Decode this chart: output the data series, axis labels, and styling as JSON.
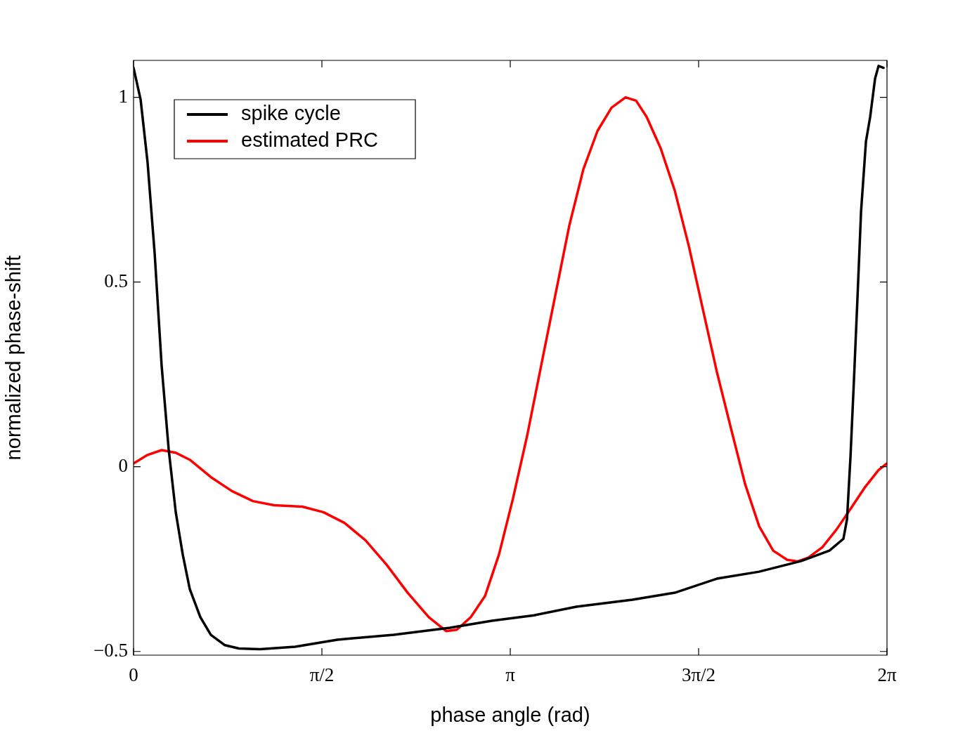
{
  "chart_data": {
    "type": "line",
    "xlabel": "phase angle (rad)",
    "ylabel": "normalized phase-shift",
    "xlim": [
      0,
      6.2832
    ],
    "ylim": [
      -0.51,
      1.1
    ],
    "xticks": [
      {
        "value": 0,
        "label": "0"
      },
      {
        "value": 1.5708,
        "label": "π/2"
      },
      {
        "value": 3.1416,
        "label": "π"
      },
      {
        "value": 4.7124,
        "label": "3π/2"
      },
      {
        "value": 6.2832,
        "label": "2π"
      }
    ],
    "yticks": [
      {
        "value": -0.5,
        "label": "−0.5"
      },
      0,
      0.5,
      1
    ],
    "grid": false,
    "legend": "top left",
    "marker": "none",
    "line_style": "solid",
    "series": [
      {
        "name": "spike cycle",
        "color": "#000000",
        "x": [
          0,
          0.059,
          0.117,
          0.176,
          0.234,
          0.293,
          0.352,
          0.41,
          0.469,
          0.557,
          0.645,
          0.762,
          0.879,
          1.055,
          1.348,
          1.7,
          2.169,
          2.638,
          2.989,
          3.341,
          3.693,
          4.162,
          4.514,
          4.865,
          5.217,
          5.569,
          5.803,
          5.92,
          5.95,
          5.979,
          6.008,
          6.038,
          6.067,
          6.108,
          6.143,
          6.184,
          6.213,
          6.254
        ],
        "values": [
          1.08,
          0.994,
          0.824,
          0.578,
          0.275,
          0.047,
          -0.123,
          -0.237,
          -0.331,
          -0.407,
          -0.455,
          -0.483,
          -0.492,
          -0.494,
          -0.487,
          -0.468,
          -0.455,
          -0.436,
          -0.417,
          -0.402,
          -0.379,
          -0.36,
          -0.341,
          -0.303,
          -0.284,
          -0.255,
          -0.227,
          -0.195,
          -0.142,
          0.028,
          0.237,
          0.464,
          0.691,
          0.881,
          0.947,
          1.051,
          1.085,
          1.08
        ]
      },
      {
        "name": "estimated PRC",
        "color": "#ff0000",
        "x": [
          0,
          0.117,
          0.234,
          0.352,
          0.469,
          0.645,
          0.821,
          0.996,
          1.172,
          1.407,
          1.583,
          1.759,
          1.934,
          2.11,
          2.286,
          2.462,
          2.608,
          2.696,
          2.813,
          2.931,
          3.048,
          3.165,
          3.283,
          3.4,
          3.517,
          3.634,
          3.751,
          3.869,
          3.986,
          4.103,
          4.191,
          4.279,
          4.396,
          4.513,
          4.631,
          4.748,
          4.865,
          4.982,
          5.1,
          5.217,
          5.334,
          5.451,
          5.539,
          5.627,
          5.744,
          5.862,
          5.979,
          6.096,
          6.213,
          6.283
        ],
        "values": [
          0.009,
          0.032,
          0.045,
          0.038,
          0.019,
          -0.028,
          -0.066,
          -0.093,
          -0.104,
          -0.108,
          -0.123,
          -0.152,
          -0.199,
          -0.265,
          -0.341,
          -0.407,
          -0.445,
          -0.441,
          -0.407,
          -0.35,
          -0.237,
          -0.085,
          0.085,
          0.275,
          0.464,
          0.653,
          0.805,
          0.909,
          0.972,
          1.0,
          0.991,
          0.947,
          0.862,
          0.748,
          0.597,
          0.426,
          0.256,
          0.104,
          -0.047,
          -0.161,
          -0.227,
          -0.252,
          -0.256,
          -0.246,
          -0.218,
          -0.17,
          -0.114,
          -0.057,
          -0.009,
          0.009
        ]
      }
    ]
  }
}
